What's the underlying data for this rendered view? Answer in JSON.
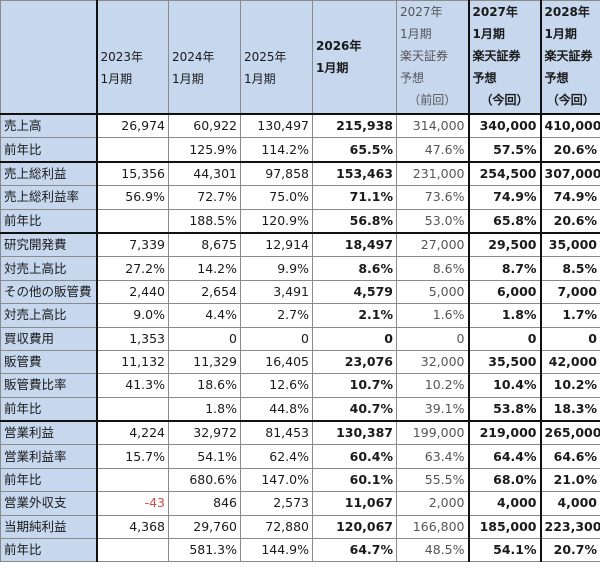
{
  "table": {
    "headers": [
      {
        "line1": "",
        "line2": ""
      },
      {
        "line1": "2023年",
        "line2": "1月期"
      },
      {
        "line1": "2024年",
        "line2": "1月期"
      },
      {
        "line1": "2025年",
        "line2": "1月期"
      },
      {
        "line1": "2026年",
        "line2": "1月期"
      },
      {
        "line1": "2027年",
        "line2": "1月期",
        "line3": "楽天証券",
        "line4": "予想",
        "line5": "（前回）"
      },
      {
        "line1": "2027年",
        "line2": "1月期",
        "line3": "楽天証券",
        "line4": "予想",
        "line5": "（今回）"
      },
      {
        "line1": "2028年",
        "line2": "1月期",
        "line3": "楽天証券",
        "line4": "予想",
        "line5": "（今回）"
      }
    ],
    "rows": [
      {
        "label": "売上高",
        "v": [
          "26,974",
          "60,922",
          "130,497",
          "215,938",
          "314,000",
          "340,000",
          "410,000"
        ]
      },
      {
        "label": "前年比",
        "v": [
          "",
          "125.9%",
          "114.2%",
          "65.5%",
          "47.6%",
          "57.5%",
          "20.6%"
        ]
      },
      {
        "label": "売上総利益",
        "v": [
          "15,356",
          "44,301",
          "97,858",
          "153,463",
          "231,000",
          "254,500",
          "307,000"
        ]
      },
      {
        "label": "売上総利益率",
        "v": [
          "56.9%",
          "72.7%",
          "75.0%",
          "71.1%",
          "73.6%",
          "74.9%",
          "74.9%"
        ]
      },
      {
        "label": "前年比",
        "v": [
          "",
          "188.5%",
          "120.9%",
          "56.8%",
          "53.0%",
          "65.8%",
          "20.6%"
        ]
      },
      {
        "label": "研究開発費",
        "v": [
          "7,339",
          "8,675",
          "12,914",
          "18,497",
          "27,000",
          "29,500",
          "35,000"
        ]
      },
      {
        "label": "対売上高比",
        "v": [
          "27.2%",
          "14.2%",
          "9.9%",
          "8.6%",
          "8.6%",
          "8.7%",
          "8.5%"
        ]
      },
      {
        "label": "その他の販管費",
        "v": [
          "2,440",
          "2,654",
          "3,491",
          "4,579",
          "5,000",
          "6,000",
          "7,000"
        ]
      },
      {
        "label": "対売上高比",
        "v": [
          "9.0%",
          "4.4%",
          "2.7%",
          "2.1%",
          "1.6%",
          "1.8%",
          "1.7%"
        ]
      },
      {
        "label": "買収費用",
        "v": [
          "1,353",
          "0",
          "0",
          "0",
          "0",
          "0",
          "0"
        ]
      },
      {
        "label": "販管費",
        "v": [
          "11,132",
          "11,329",
          "16,405",
          "23,076",
          "32,000",
          "35,500",
          "42,000"
        ]
      },
      {
        "label": "販管費比率",
        "v": [
          "41.3%",
          "18.6%",
          "12.6%",
          "10.7%",
          "10.2%",
          "10.4%",
          "10.2%"
        ]
      },
      {
        "label": "前年比",
        "v": [
          "",
          "1.8%",
          "44.8%",
          "40.7%",
          "39.1%",
          "53.8%",
          "18.3%"
        ]
      },
      {
        "label": "営業利益",
        "v": [
          "4,224",
          "32,972",
          "81,453",
          "130,387",
          "199,000",
          "219,000",
          "265,000"
        ]
      },
      {
        "label": "営業利益率",
        "v": [
          "15.7%",
          "54.1%",
          "62.4%",
          "60.4%",
          "63.4%",
          "64.4%",
          "64.6%"
        ]
      },
      {
        "label": "前年比",
        "v": [
          "",
          "680.6%",
          "147.0%",
          "60.1%",
          "55.5%",
          "68.0%",
          "21.0%"
        ]
      },
      {
        "label": "営業外収支",
        "v": [
          "-43",
          "846",
          "2,573",
          "11,067",
          "2,000",
          "4,000",
          "4,000"
        ]
      },
      {
        "label": "当期純利益",
        "v": [
          "4,368",
          "29,760",
          "72,880",
          "120,067",
          "166,800",
          "185,000",
          "223,300"
        ]
      },
      {
        "label": "前年比",
        "v": [
          "",
          "581.3%",
          "144.9%",
          "64.7%",
          "48.5%",
          "54.1%",
          "20.7%"
        ]
      }
    ]
  },
  "colors": {
    "header_bg": "#c6d7ee",
    "negative": "#d44a4a",
    "previous_forecast_text": "#555555"
  }
}
